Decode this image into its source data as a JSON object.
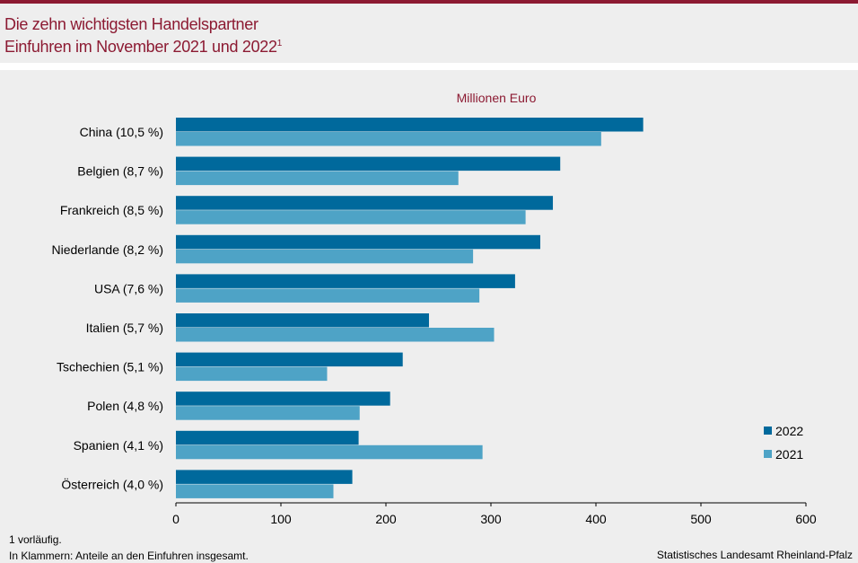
{
  "header": {
    "title_line1": "Die zehn wichtigsten Handelspartner",
    "title_line2": "Einfuhren im November 2021 und 2022",
    "title_footnote_mark": "1"
  },
  "colors": {
    "accent": "#8c1a32",
    "series_2022": "#00699c",
    "series_2021": "#4ea3c6",
    "background": "#eeeeee"
  },
  "chart_data": {
    "type": "bar",
    "orientation": "horizontal",
    "unit_label": "Millionen Euro",
    "categories": [
      "China (10,5 %)",
      "Belgien (8,7 %)",
      "Frankreich (8,5 %)",
      "Niederlande (8,2 %)",
      "USA (7,6 %)",
      "Italien (5,7 %)",
      "Tschechien (5,1 %)",
      "Polen (4,8 %)",
      "Spanien (4,1 %)",
      "Österreich (4,0 %)"
    ],
    "series": [
      {
        "name": "2022",
        "values": [
          445,
          366,
          359,
          347,
          323,
          241,
          216,
          204,
          174,
          168
        ]
      },
      {
        "name": "2021",
        "values": [
          405,
          269,
          333,
          283,
          289,
          303,
          144,
          175,
          292,
          150
        ]
      }
    ],
    "xlim": [
      0,
      600
    ],
    "xticks": [
      "0",
      "100",
      "200",
      "300",
      "400",
      "500",
      "600"
    ],
    "legend": [
      "2022",
      "2021"
    ],
    "legend_position": "bottom-right",
    "grid": false
  },
  "footer": {
    "note1": "1 vorläufig.",
    "note2": "In Klammern: Anteile an den Einfuhren insgesamt.",
    "source": "Statistisches Landesamt Rheinland-Pfalz"
  }
}
